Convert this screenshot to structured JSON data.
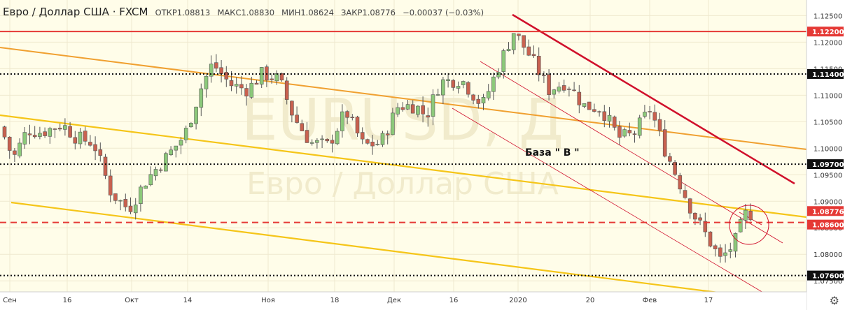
{
  "header": {
    "symbol_title": "Евро / Доллар США · FXCM",
    "open": "ОТКР1.08813",
    "high": "МАКС1.08830",
    "low": "МИН1.08624",
    "close": "ЗАКР1.08776",
    "change": "−0.00037 (−0.03%)"
  },
  "watermark": {
    "ticker": "EURUSD, Д",
    "name": "Евро / Доллар США"
  },
  "annotation": "База \" В \"",
  "price_labels": {
    "level_1": "1.12200",
    "level_2": "1.11400",
    "level_3": "1.09700",
    "level_4": "1.08776",
    "level_5": "1.08600",
    "level_6": "1.07600"
  },
  "colors": {
    "background": "#fffde9",
    "up_candle": "#8cc97a",
    "down_candle": "#c9614f",
    "resistance_red": "#e53935",
    "trend_orange": "#f0a030",
    "trend_yellow": "#f5c518",
    "channel_dark_red": "#d0102b"
  },
  "icons": {
    "settings": "gear-icon"
  },
  "chart_data": {
    "type": "candlestick",
    "symbol": "EURUSD",
    "timeframe": "Д",
    "y_axis": {
      "min": 1.0745,
      "max": 1.1265,
      "ticks": [
        "1.12500",
        "1.12000",
        "1.11500",
        "1.11000",
        "1.10500",
        "1.10000",
        "1.09500",
        "1.09000",
        "1.08500",
        "1.08000",
        "1.07500"
      ]
    },
    "x_axis": {
      "ticks": [
        "Сен",
        "16",
        "Окт",
        "14",
        "Ноя",
        "18",
        "Дек",
        "16",
        "2020",
        "20",
        "Фев",
        "17"
      ]
    },
    "horizontal_levels": [
      {
        "price": 1.122,
        "style": "solid",
        "color": "red"
      },
      {
        "price": 1.114,
        "style": "dotted",
        "color": "black"
      },
      {
        "price": 1.097,
        "style": "dotted",
        "color": "black"
      },
      {
        "price": 1.086,
        "style": "dashed",
        "color": "red"
      },
      {
        "price": 1.076,
        "style": "dotted",
        "color": "black"
      }
    ],
    "last_price": 1.08776,
    "grid": true
  }
}
